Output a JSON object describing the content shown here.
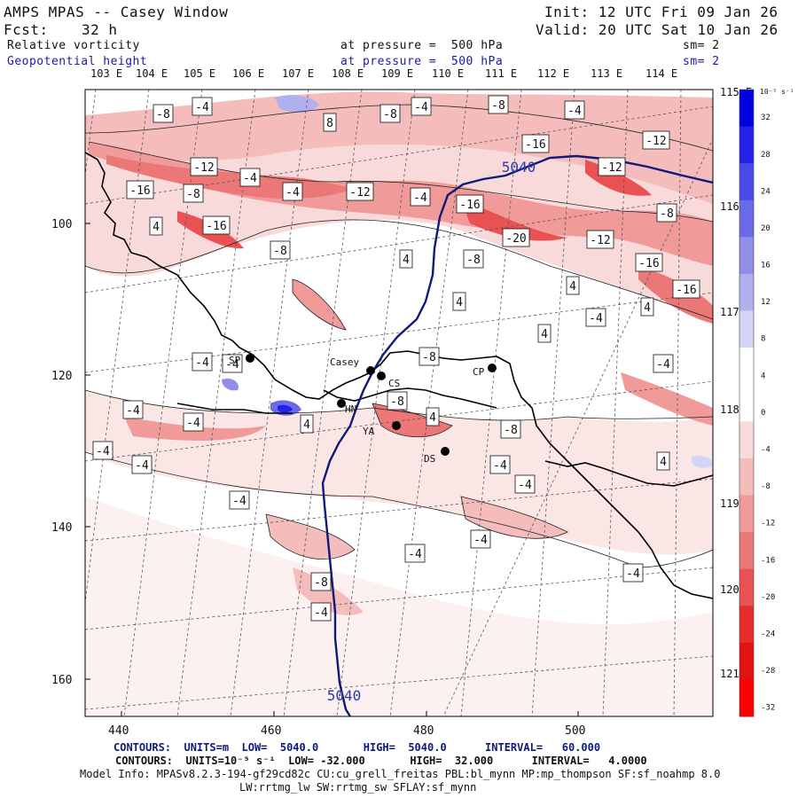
{
  "header": {
    "title": "AMPS MPAS -- Casey Window",
    "fcst_label": "Fcst:",
    "fcst_value": "32 h",
    "init": "Init: 12 UTC Fri 09 Jan 26",
    "valid": "Valid: 20 UTC Sat 10 Jan 26",
    "field1": "Relative vorticity",
    "field1_level": "at pressure =  500 hPa",
    "field1_sm": "sm= 2",
    "field2": "Geopotential height",
    "field2_level": "at pressure =  500 hPa",
    "field2_sm": "sm= 2"
  },
  "longitude_labels": [
    "103 E",
    "104 E",
    "105 E",
    "106 E",
    "107 E",
    "108 E",
    "109 E",
    "110 E",
    "111 E",
    "112 E",
    "113 E",
    "114 E"
  ],
  "right_lon_labels": [
    "115 E",
    "116 E",
    "117 E",
    "118 E",
    "119 E",
    "120 E",
    "121 E"
  ],
  "y_axis_ticks": [
    "100",
    "120",
    "140",
    "160"
  ],
  "x_axis_ticks": [
    "440",
    "460",
    "480",
    "500"
  ],
  "colorbar": {
    "unit": "10⁻⁵ s⁻¹",
    "ticks": [
      "32",
      "28",
      "24",
      "20",
      "16",
      "12",
      "8",
      "4",
      "0",
      "-4",
      "-8",
      "-12",
      "-16",
      "-20",
      "-24",
      "-28",
      "-32"
    ],
    "colors": [
      "#0000e0",
      "#2323e8",
      "#4a4ae8",
      "#6a6ae8",
      "#8f8fe8",
      "#b0b0ee",
      "#d4d4f6",
      "#ffffff",
      "#ffffff",
      "#f9dada",
      "#f5bcbc",
      "#f19a9a",
      "#ec7777",
      "#e85252",
      "#e62d2d",
      "#e21212",
      "#ff0000"
    ]
  },
  "stations": [
    {
      "label": "SP"
    },
    {
      "label": "Casey"
    },
    {
      "label": "CS"
    },
    {
      "label": "HN"
    },
    {
      "label": "YA"
    },
    {
      "label": "CP"
    },
    {
      "label": "DS"
    }
  ],
  "contour_boxes": [
    "-8",
    "-4",
    "8",
    "-8",
    "-4",
    "-8",
    "-4",
    "-12",
    "-4",
    "-16",
    "-12",
    "-16",
    "-8",
    "-4",
    "-12",
    "-4",
    "-12",
    "-16",
    "-16",
    "-16",
    "4",
    "-8",
    "-20",
    "-12",
    "-8",
    "4",
    "-8",
    "-16",
    "4",
    "4",
    "-4",
    "4",
    "4",
    "-4",
    "-4",
    "-8",
    "-4",
    "-4",
    "-8",
    "-4",
    "4",
    "4",
    "-8",
    "-4",
    "-4",
    "-4",
    "4",
    "-4",
    "-4",
    "-4",
    "-4",
    "-8",
    "-4",
    "-4",
    "5040"
  ],
  "isoline_label": "5040",
  "footer": {
    "line1": "CONTOURS:  UNITS=m  LOW=  5040.0       HIGH=  5040.0      INTERVAL=   60.000",
    "line2": "CONTOURS:  UNITS=10⁻⁵ s⁻¹  LOW= -32.000       HIGH=  32.000      INTERVAL=   4.0000",
    "line3": "Model Info: MPASv8.2.3-194-gf29cd82c CU:cu_grell_freitas PBL:bl_mynn MP:mp_thompson SF:sf_noahmp 8.0",
    "line4": "LW:rrtmg_lw SW:rrtmg_sw SFLAY:sf_mynn"
  }
}
